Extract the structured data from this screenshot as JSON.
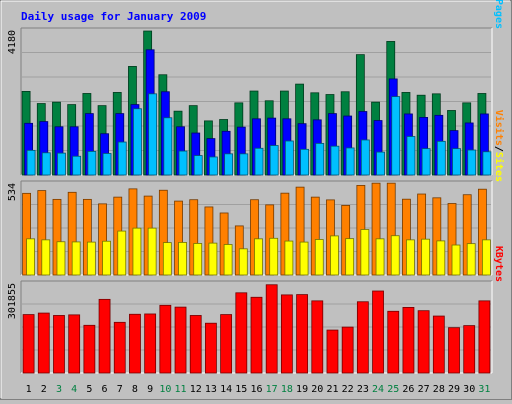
{
  "chart_data": {
    "type": "bar",
    "title": "Daily usage for January 2009",
    "x": [
      "1",
      "2",
      "3",
      "4",
      "5",
      "6",
      "7",
      "8",
      "9",
      "10",
      "11",
      "12",
      "13",
      "14",
      "15",
      "16",
      "17",
      "18",
      "19",
      "20",
      "21",
      "22",
      "23",
      "24",
      "25",
      "26",
      "27",
      "28",
      "29",
      "30",
      "31"
    ],
    "weekend_days": [
      "3",
      "4",
      "10",
      "11",
      "17",
      "18",
      "24",
      "25",
      "31"
    ],
    "panels": [
      {
        "name": "hits_files_pages",
        "ylabel_parts": [
          "Pages",
          "/",
          "Files",
          "/",
          "Hits"
        ],
        "ymax_label": "4180",
        "ylim": [
          0,
          4180
        ],
        "series": [
          {
            "name": "Hits",
            "color": "#008040",
            "values": [
              2410,
              2060,
              2100,
              2030,
              2350,
              2000,
              2380,
              3130,
              4150,
              2890,
              1840,
              2000,
              1560,
              1600,
              2080,
              2420,
              2140,
              2420,
              2620,
              2370,
              2320,
              2400,
              3470,
              2100,
              3850,
              2380,
              2300,
              2340,
              1860,
              2080,
              2350
            ]
          },
          {
            "name": "Files",
            "color": "#0000ff",
            "values": [
              1490,
              1540,
              1390,
              1390,
              1770,
              1190,
              1770,
              2030,
              3610,
              2400,
              1390,
              1210,
              1050,
              1260,
              1380,
              1620,
              1640,
              1620,
              1480,
              1590,
              1770,
              1700,
              1830,
              1570,
              2770,
              1760,
              1660,
              1720,
              1280,
              1500,
              1760
            ]
          },
          {
            "name": "Pages",
            "color": "#00c0ff",
            "values": [
              710,
              640,
              630,
              540,
              680,
              620,
              950,
              1910,
              2340,
              1650,
              690,
              560,
              520,
              610,
              610,
              770,
              850,
              980,
              740,
              910,
              830,
              780,
              1010,
              660,
              2260,
              1110,
              760,
              970,
              760,
              720,
              670
            ]
          }
        ]
      },
      {
        "name": "visits_sites",
        "ylabel_parts": [
          "Sites",
          "/",
          "Visits"
        ],
        "ymax_label": "534",
        "ylim": [
          0,
          534
        ],
        "series": [
          {
            "name": "Visits",
            "color": "#ff8000",
            "values": [
              474,
              490,
              439,
              480,
              439,
              413,
              452,
              500,
              458,
              492,
              429,
              437,
              395,
              360,
              285,
              437,
              407,
              475,
              510,
              452,
              436,
              404,
              520,
              533,
              533,
              440,
              470,
              448,
              415,
              466,
              498
            ]
          },
          {
            "name": "Sites",
            "color": "#ffff00",
            "values": [
              210,
              204,
              193,
              192,
              191,
              196,
              255,
              272,
              272,
              188,
              189,
              183,
              185,
              177,
              152,
              210,
              213,
              197,
              191,
              206,
              227,
              211,
              264,
              210,
              228,
              204,
              208,
              198,
              174,
              182,
              204
            ]
          }
        ]
      },
      {
        "name": "kbytes",
        "ylabel_parts": [
          "KBytes"
        ],
        "ymax_label": "301855",
        "ylim": [
          0,
          301855
        ],
        "series": [
          {
            "name": "KBytes",
            "color": "#ff0000",
            "values": [
              196000,
              201000,
              193000,
              195000,
              160000,
              247000,
              170000,
              197000,
              198000,
              227000,
              221000,
              193000,
              167000,
              196000,
              269000,
              254000,
              296000,
              262000,
              263000,
              242000,
              144000,
              154000,
              239000,
              275000,
              207000,
              220000,
              209000,
              191000,
              152000,
              159000,
              242000
            ]
          }
        ]
      }
    ]
  }
}
